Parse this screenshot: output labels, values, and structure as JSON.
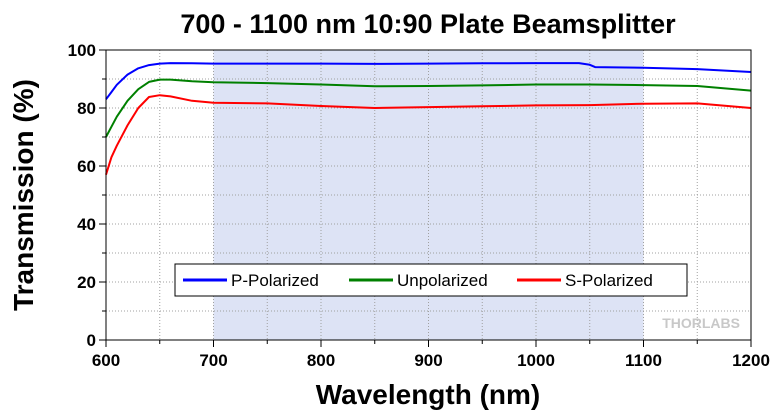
{
  "chart_data": {
    "type": "line",
    "title": "700 - 1100 nm 10:90 Plate Beamsplitter",
    "xlabel": "Wavelength (nm)",
    "ylabel": "Transmission (%)",
    "xlim": [
      600,
      1200
    ],
    "ylim": [
      0,
      100
    ],
    "xticks": [
      600,
      700,
      800,
      900,
      1000,
      1100,
      1200
    ],
    "yticks": [
      0,
      20,
      40,
      60,
      80,
      100
    ],
    "grid": true,
    "shaded_region": [
      700,
      1100
    ],
    "legend_position": "bottom-center",
    "watermark": "THORLABS",
    "series": [
      {
        "name": "P-Polarized",
        "color": "#0000ff",
        "x": [
          600,
          605,
          610,
          620,
          630,
          640,
          650,
          660,
          680,
          700,
          750,
          800,
          850,
          900,
          950,
          1000,
          1040,
          1050,
          1055,
          1100,
          1150,
          1200
        ],
        "y": [
          83,
          85.5,
          88,
          91.5,
          93.7,
          94.8,
          95.3,
          95.5,
          95.4,
          95.3,
          95.3,
          95.3,
          95.2,
          95.3,
          95.4,
          95.5,
          95.5,
          94.9,
          94.1,
          93.9,
          93.4,
          92.4
        ]
      },
      {
        "name": "Unpolarized",
        "color": "#008000",
        "x": [
          600,
          605,
          610,
          620,
          630,
          640,
          650,
          660,
          680,
          700,
          750,
          800,
          850,
          900,
          950,
          1000,
          1050,
          1100,
          1150,
          1200
        ],
        "y": [
          70,
          73.5,
          77,
          82.5,
          86.5,
          89,
          89.8,
          89.8,
          89.2,
          88.9,
          88.6,
          88.1,
          87.5,
          87.6,
          87.8,
          88.1,
          88.1,
          87.9,
          87.6,
          86
        ]
      },
      {
        "name": "S-Polarized",
        "color": "#ff0000",
        "x": [
          600,
          605,
          610,
          620,
          630,
          640,
          650,
          660,
          680,
          700,
          750,
          800,
          850,
          900,
          950,
          1000,
          1050,
          1100,
          1150,
          1200
        ],
        "y": [
          57,
          63,
          67,
          74,
          80,
          83.8,
          84.4,
          84,
          82.5,
          81.8,
          81.6,
          80.7,
          80,
          80.3,
          80.6,
          80.9,
          81,
          81.5,
          81.6,
          80
        ]
      }
    ]
  }
}
